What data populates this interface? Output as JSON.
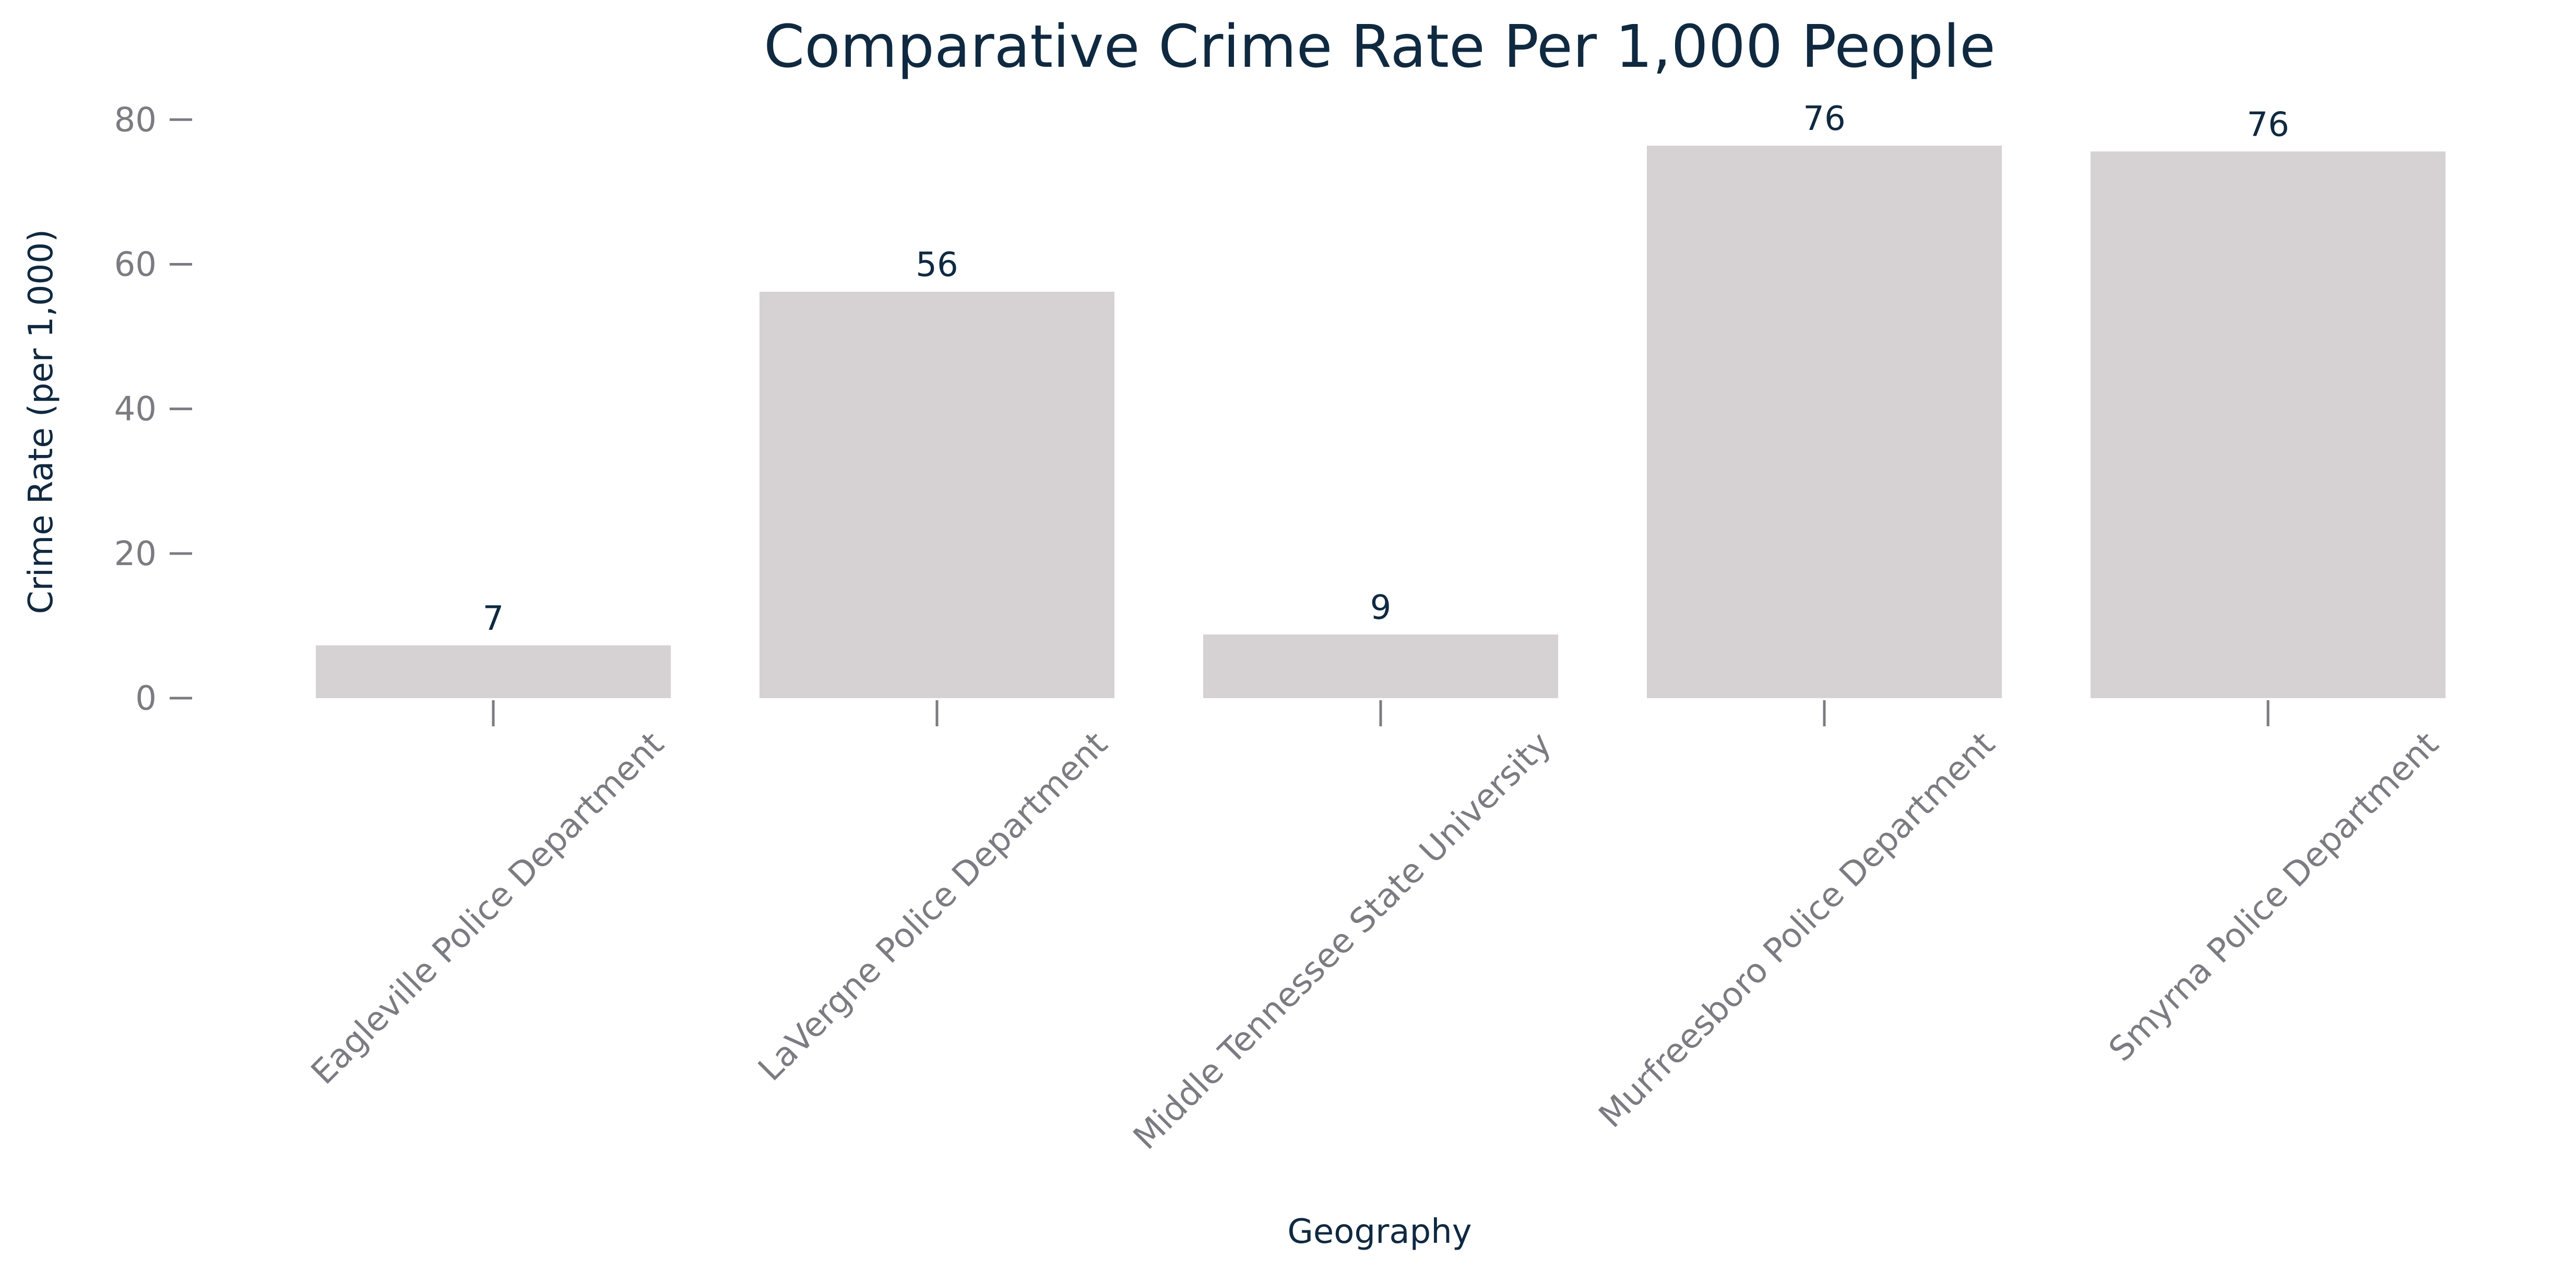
{
  "chart_data": {
    "type": "bar",
    "title": "Comparative Crime Rate Per 1,000 People",
    "xlabel": "Geography",
    "ylabel": "Crime Rate (per 1,000)",
    "categories": [
      "Eagleville Police Department",
      "LaVergne Police Department",
      "Middle Tennessee State University",
      "Murfreesboro Police Department",
      "Smyrna Police Department"
    ],
    "values": [
      7.3,
      56.2,
      8.8,
      76.4,
      75.6
    ],
    "data_labels": [
      "7",
      "56",
      "9",
      "76",
      "76"
    ],
    "ylim": [
      0,
      85
    ],
    "yticks": [
      0,
      20,
      40,
      60,
      80
    ],
    "grid": false,
    "legend": "none",
    "colors": {
      "bar": "#d6d1d3",
      "title": "#0f2940",
      "tick": "#7b7b82"
    }
  }
}
